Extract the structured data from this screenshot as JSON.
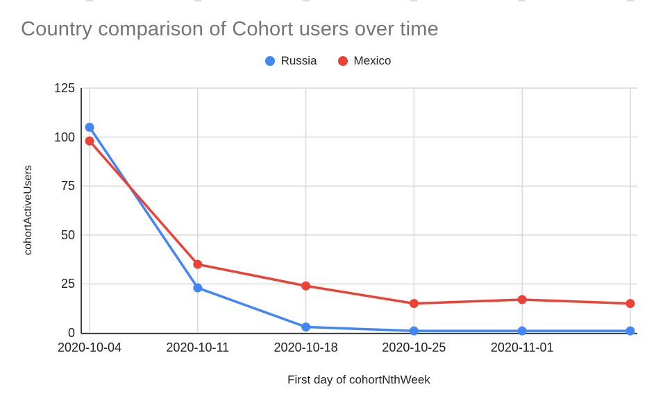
{
  "page": {
    "background_color": "#ffffff"
  },
  "header": {
    "title": "Country comparison of Cohort users over time",
    "title_color": "#757575"
  },
  "legend": {
    "position": "top-center",
    "items": [
      {
        "label": "Russia",
        "color": "#4285F4"
      },
      {
        "label": "Mexico",
        "color": "#EA4335"
      }
    ]
  },
  "chart_data": {
    "type": "line",
    "title": "Country comparison of Cohort users over time",
    "xlabel": "First day of cohortNthWeek",
    "ylabel": "cohortActiveUsers",
    "categories": [
      "2020-10-04",
      "2020-10-11",
      "2020-10-18",
      "2020-10-25",
      "2020-11-01",
      ""
    ],
    "series": [
      {
        "name": "Russia",
        "color": "#4285F4",
        "values": [
          105,
          23,
          3,
          1,
          1,
          1
        ]
      },
      {
        "name": "Mexico",
        "color": "#EA4335",
        "values": [
          98,
          35,
          24,
          15,
          17,
          15
        ]
      }
    ],
    "ylim": [
      0,
      125
    ],
    "y_ticks": [
      0,
      25,
      50,
      75,
      100,
      125
    ],
    "grid": true,
    "legend_position": "top",
    "styles": {
      "gridline_color": "#d9d9d9",
      "axis_line_color": "#424242",
      "tick_text_color": "#212121",
      "point_radius": 6.5,
      "line_width": 3.5
    }
  }
}
